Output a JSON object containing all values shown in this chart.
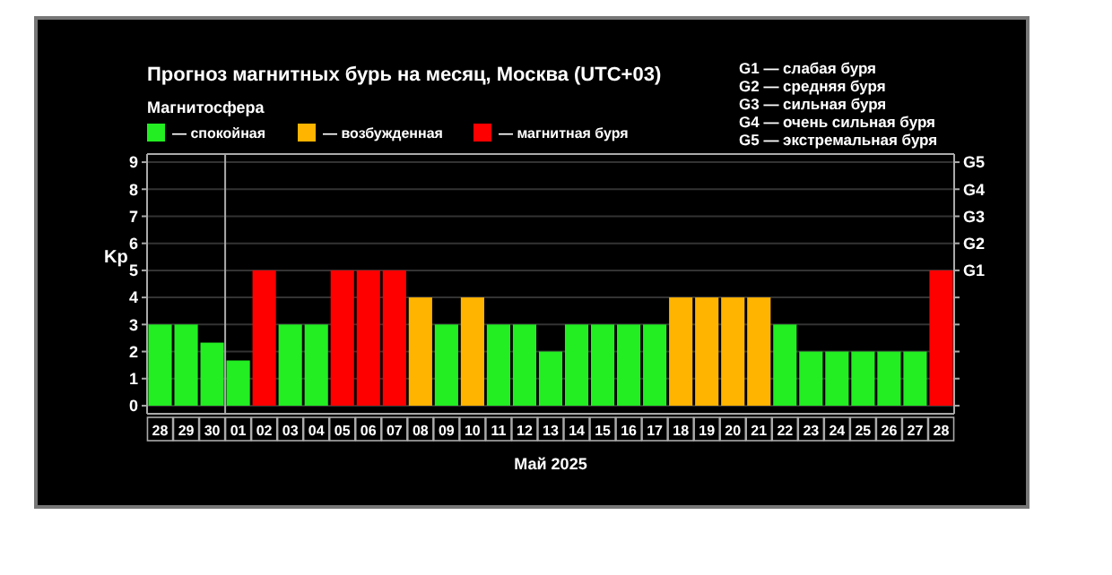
{
  "chart_data": {
    "type": "bar",
    "title": "Прогноз магнитных бурь на месяц, Москва (UTC+03)",
    "xlabel": "Май 2025",
    "ylabel": "Kp",
    "legend_title": "Магнитосфера",
    "legend": "top left",
    "grid": "y",
    "categories": [
      "28",
      "29",
      "30",
      "01",
      "02",
      "03",
      "04",
      "05",
      "06",
      "07",
      "08",
      "09",
      "10",
      "11",
      "12",
      "13",
      "14",
      "15",
      "16",
      "17",
      "18",
      "19",
      "20",
      "21",
      "22",
      "23",
      "24",
      "25",
      "26",
      "27",
      "28"
    ],
    "series": [
      {
        "name": "— спокойная",
        "color": "#22ee22",
        "values": [
          3,
          3,
          2.33,
          1.67,
          null,
          3,
          3,
          null,
          null,
          null,
          null,
          3,
          null,
          3,
          3,
          2,
          3,
          3,
          3,
          3,
          null,
          null,
          null,
          null,
          3,
          2,
          2,
          2,
          2,
          2,
          null
        ]
      },
      {
        "name": "— возбужденная",
        "color": "#ffb400",
        "values": [
          null,
          null,
          null,
          null,
          null,
          null,
          null,
          null,
          null,
          null,
          4,
          null,
          4,
          null,
          null,
          null,
          null,
          null,
          null,
          null,
          4,
          4,
          4,
          4,
          null,
          null,
          null,
          null,
          null,
          null,
          null
        ]
      },
      {
        "name": "— магнитная буря",
        "color": "#ff0000",
        "values": [
          null,
          null,
          null,
          null,
          5,
          null,
          null,
          5,
          5,
          5,
          null,
          null,
          null,
          null,
          null,
          null,
          null,
          null,
          null,
          null,
          null,
          null,
          null,
          null,
          null,
          null,
          null,
          null,
          null,
          null,
          5
        ]
      }
    ],
    "ylim": [
      -0.3,
      9.3
    ],
    "yticks": [
      0,
      1,
      2,
      3,
      4,
      5,
      6,
      7,
      8,
      9
    ],
    "ref_lines": [
      {
        "axis": "x",
        "value": "01",
        "color": "#aaaaaa"
      }
    ],
    "annotations": [
      "G1 — слабая буря",
      "G2 — средняя буря",
      "G3 — сильная буря",
      "G4 — очень сильная буря",
      "G5 — экстремальная буря",
      "G1",
      "G2",
      "G3",
      "G4",
      "G5"
    ]
  }
}
